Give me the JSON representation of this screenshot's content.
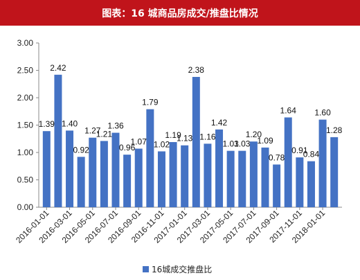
{
  "chart_data": {
    "type": "bar",
    "title": "图表：16 城商品房成交/推盘比情况",
    "categories": [
      "2016-01",
      "2016-02",
      "2016-03",
      "2016-04",
      "2016-05",
      "2016-06",
      "2016-07",
      "2016-08",
      "2016-09",
      "2016-10",
      "2016-11",
      "2016-12",
      "2017-01",
      "2017-02",
      "2017-03",
      "2017-04",
      "2017-05",
      "2017-06",
      "2017-07",
      "2017-08",
      "2017-09",
      "2017-10",
      "2017-11",
      "2017-12",
      "2018-01",
      "2018-02"
    ],
    "x_tick_labels": [
      "2016-01-01",
      "2016-03-01",
      "2016-05-01",
      "2016-07-01",
      "2016-09-01",
      "2016-11-01",
      "2017-01-01",
      "2017-03-01",
      "2017-05-01",
      "2017-07-01",
      "2017-09-01",
      "2017-11-01",
      "2018-01-01"
    ],
    "series": [
      {
        "name": "16城成交推盘比",
        "values": [
          1.39,
          2.42,
          1.4,
          0.92,
          1.27,
          1.21,
          1.36,
          0.96,
          1.07,
          1.79,
          1.02,
          1.19,
          1.13,
          2.38,
          1.16,
          1.42,
          1.03,
          1.03,
          1.2,
          1.09,
          0.78,
          1.64,
          0.91,
          0.84,
          1.6,
          1.28
        ],
        "labels": [
          "1.39",
          "2.42",
          "1.40",
          "0.92",
          "1.27",
          "1.21",
          "1.36",
          "0.96",
          "1.07",
          "1.79",
          "1.02",
          "1.19",
          "1.13",
          "2.38",
          "1.16",
          "1.42",
          "1.03",
          "1.03",
          "1.20",
          "1.09",
          "0.78",
          "1.64",
          "0.91",
          "0.84",
          "1.60",
          "1.28"
        ]
      }
    ],
    "ylim": [
      0,
      3
    ],
    "y_ticks": [
      "0.00",
      "0.50",
      "1.00",
      "1.50",
      "2.00",
      "2.50",
      "3.00"
    ],
    "grid": false,
    "legend": "bottom-center",
    "bar_color": "#4472c4"
  }
}
